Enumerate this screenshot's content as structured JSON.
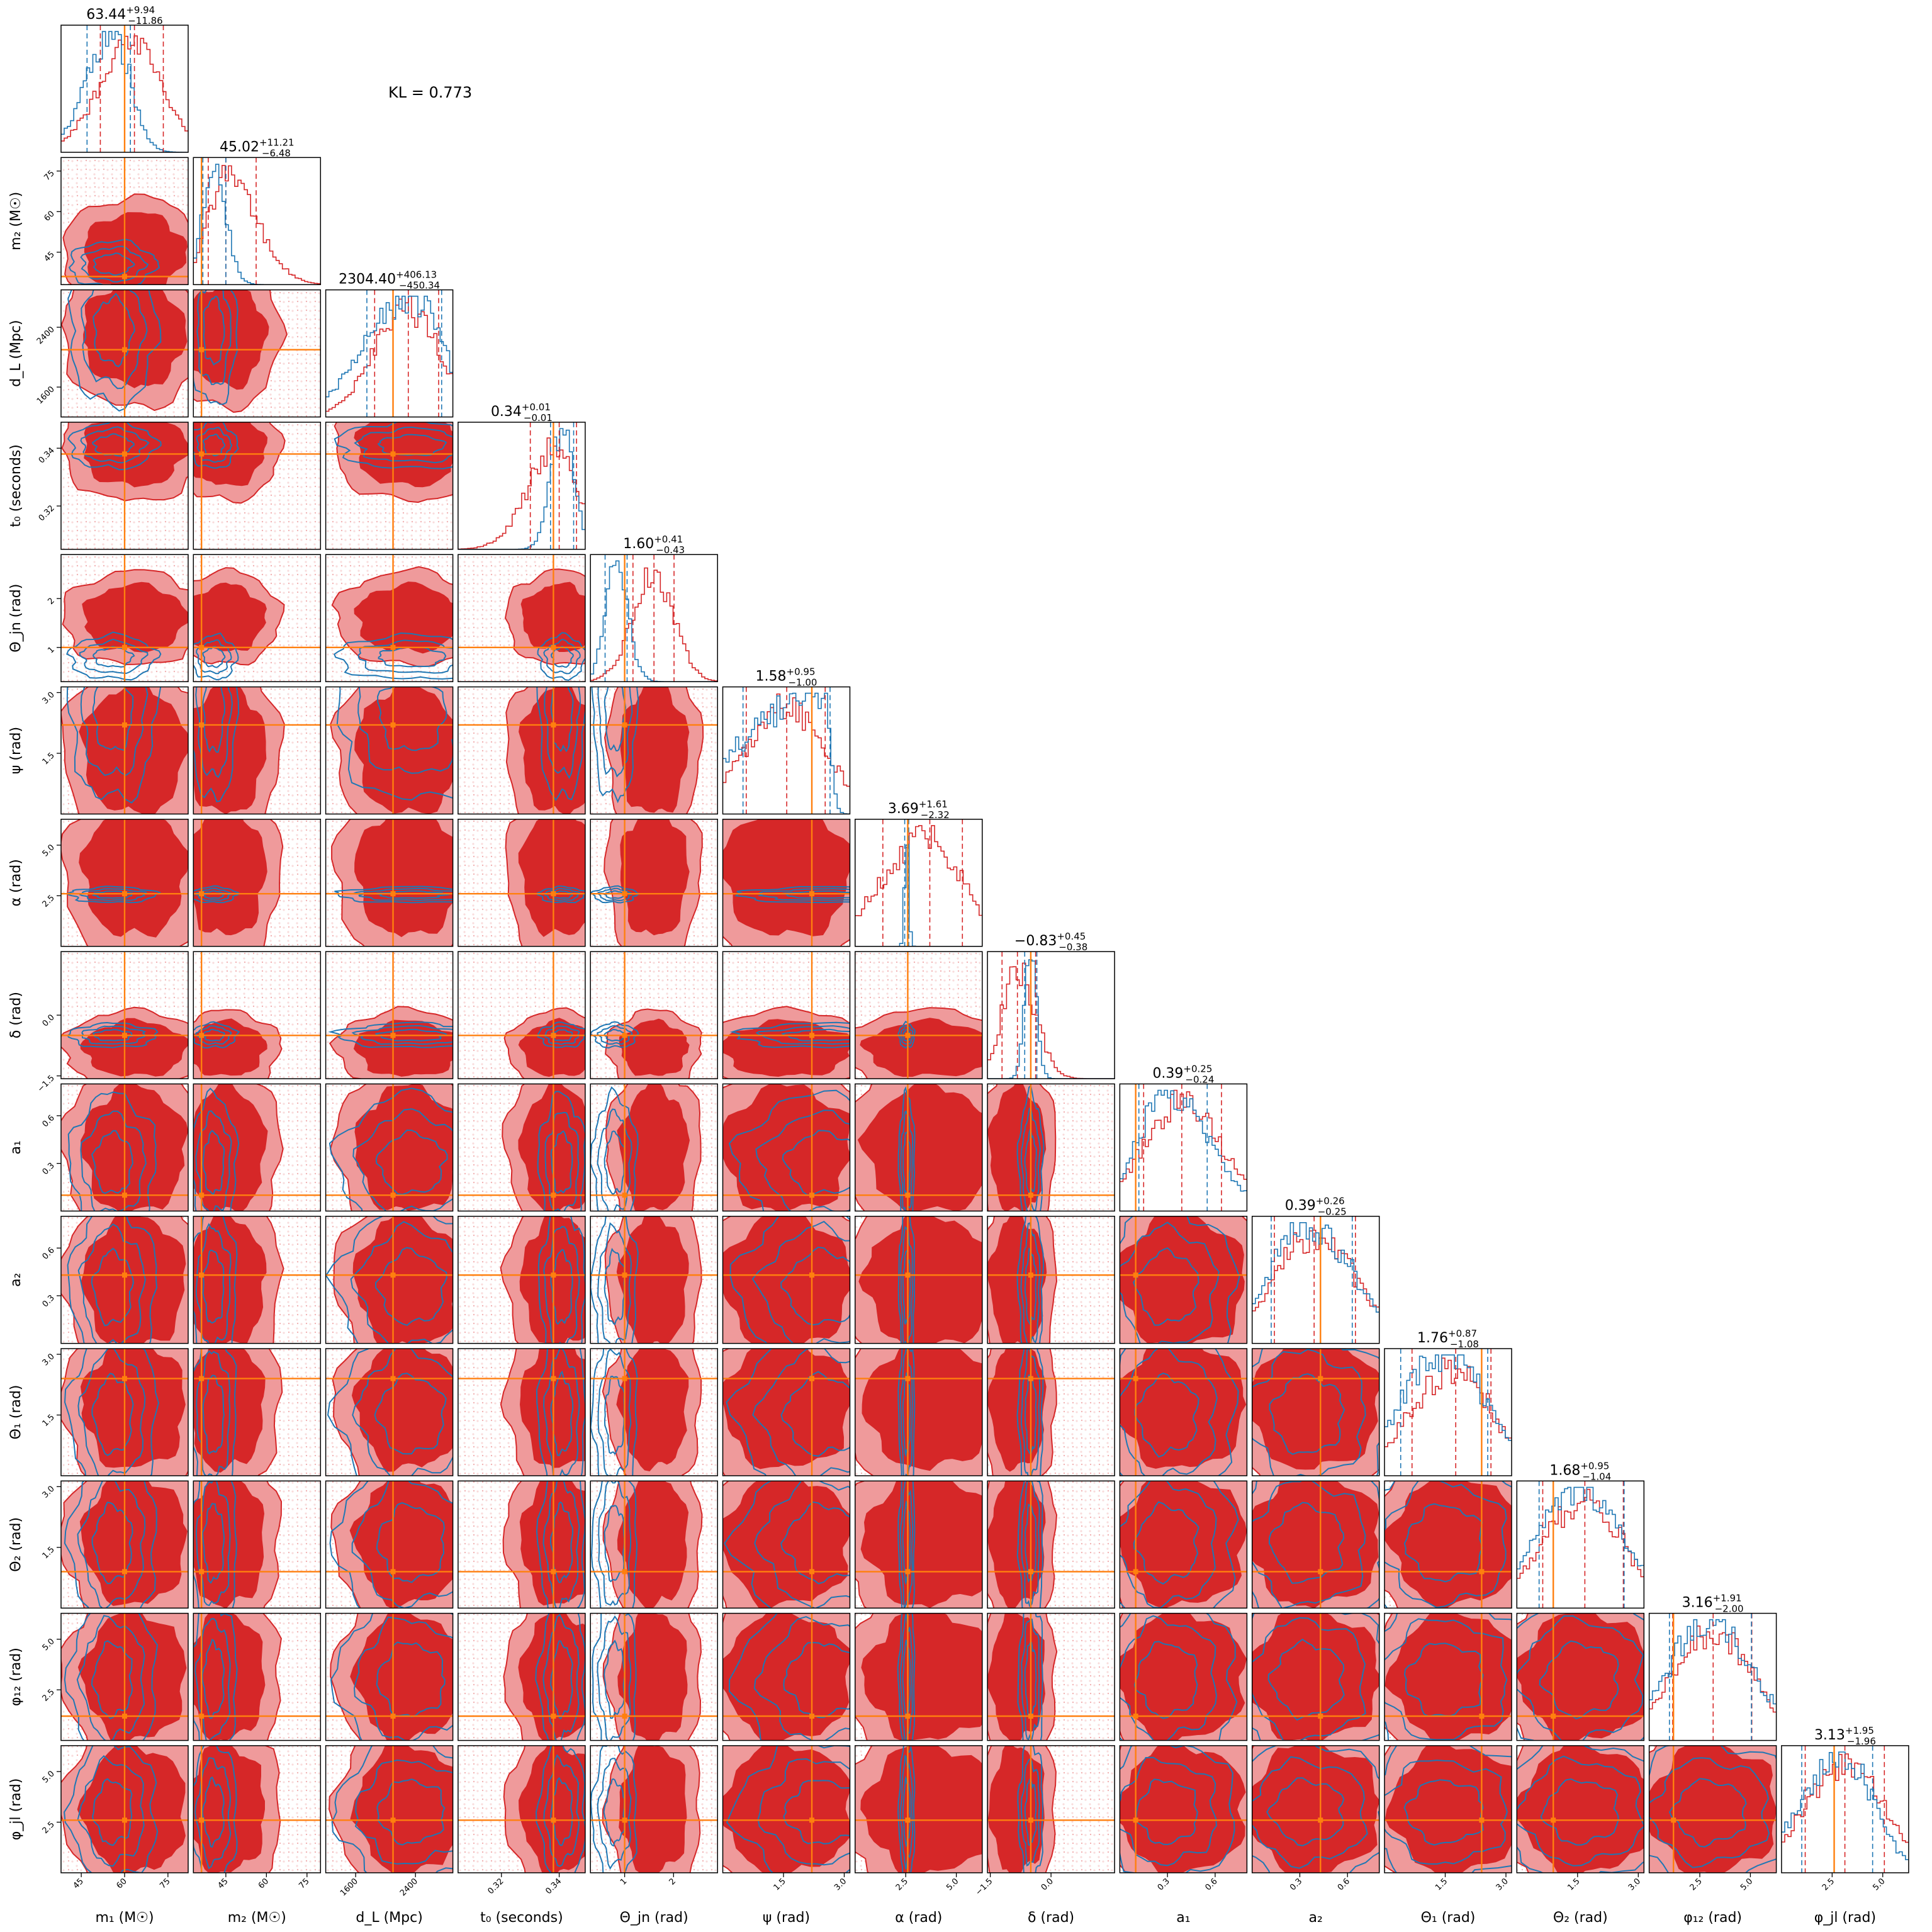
{
  "annotation": "KL = 0.773",
  "colors": {
    "posterior_a": "#d62728",
    "posterior_a_light": "#ef9a9b",
    "posterior_b": "#1f77b4",
    "truth": "#ff7f0e",
    "frame": "#000000"
  },
  "chart_data": {
    "type": "corner",
    "grid": false,
    "legend": "none",
    "parameters": [
      {
        "id": "m1",
        "label": "m₁ (M☉)",
        "title_value": "63.44",
        "title_plus": "+9.94",
        "title_minus": "−11.86",
        "range": [
          38,
          82
        ],
        "ticks": [
          "45",
          "60",
          "75"
        ],
        "tick_values": [
          45,
          60,
          75
        ],
        "truth": 60,
        "quantiles_a": [
          51.6,
          63.4,
          73.4
        ],
        "quantiles_b": [
          47.0,
          56.0,
          62.0
        ]
      },
      {
        "id": "m2",
        "label": "m₂ (M☉)",
        "title_value": "45.02",
        "title_plus": "+11.21",
        "title_minus": "−6.48",
        "range": [
          33,
          80
        ],
        "ticks": [
          "45",
          "60",
          "75"
        ],
        "tick_values": [
          45,
          60,
          75
        ],
        "truth": 36,
        "quantiles_a": [
          38.5,
          45.0,
          56.2
        ],
        "quantiles_b": [
          36.5,
          40.5,
          45.0
        ]
      },
      {
        "id": "dL",
        "label": "d_L (Mpc)",
        "title_value": "2304.40",
        "title_plus": "+406.13",
        "title_minus": "−450.34",
        "range": [
          1200,
          2900
        ],
        "ticks": [
          "1600",
          "2400"
        ],
        "tick_values": [
          1600,
          2400
        ],
        "truth": 2100,
        "quantiles_a": [
          1854,
          2304,
          2710
        ],
        "quantiles_b": [
          1750,
          2350,
          2750
        ]
      },
      {
        "id": "t0",
        "label": "t₀ (seconds)",
        "title_value": "0.34",
        "title_plus": "+0.01",
        "title_minus": "−0.01",
        "range": [
          0.305,
          0.349
        ],
        "ticks": [
          "0.32",
          "0.34"
        ],
        "tick_values": [
          0.32,
          0.34
        ],
        "truth": 0.338,
        "quantiles_a": [
          0.33,
          0.34,
          0.346
        ],
        "quantiles_b": [
          0.337,
          0.341,
          0.345
        ]
      },
      {
        "id": "thetajn",
        "label": "Θ_jn (rad)",
        "title_value": "1.60",
        "title_plus": "+0.41",
        "title_minus": "−0.43",
        "range": [
          0.3,
          2.9
        ],
        "ticks": [
          "1",
          "2"
        ],
        "tick_values": [
          1,
          2
        ],
        "truth": 1.0,
        "quantiles_a": [
          1.17,
          1.6,
          2.01
        ],
        "quantiles_b": [
          0.6,
          0.8,
          1.05
        ]
      },
      {
        "id": "psi",
        "label": "ψ (rad)",
        "title_value": "1.58",
        "title_plus": "+0.95",
        "title_minus": "−1.00",
        "range": [
          0,
          3.14
        ],
        "ticks": [
          "1.5",
          "3.0"
        ],
        "tick_values": [
          1.5,
          3.0
        ],
        "truth": 2.2,
        "quantiles_a": [
          0.58,
          1.58,
          2.53
        ],
        "quantiles_b": [
          0.5,
          2.5,
          2.65
        ]
      },
      {
        "id": "alpha",
        "label": "α (rad)",
        "title_value": "3.69",
        "title_plus": "+1.61",
        "title_minus": "−2.32",
        "range": [
          0,
          6.28
        ],
        "ticks": [
          "2.5",
          "5.0"
        ],
        "tick_values": [
          2.5,
          5.0
        ],
        "truth": 2.6,
        "quantiles_a": [
          1.37,
          3.69,
          5.3
        ],
        "quantiles_b": [
          2.45,
          2.55,
          2.65
        ]
      },
      {
        "id": "delta",
        "label": "δ (rad)",
        "title_value": "−0.83",
        "title_plus": "+0.45",
        "title_minus": "−0.38",
        "range": [
          -1.57,
          1.57
        ],
        "ticks": [
          "−1.5",
          "0.0"
        ],
        "tick_values": [
          -1.5,
          0.0
        ],
        "truth": -0.5,
        "quantiles_a": [
          -1.21,
          -0.83,
          -0.38
        ],
        "quantiles_b": [
          -0.65,
          -0.5,
          -0.35
        ]
      },
      {
        "id": "a1",
        "label": "a₁",
        "title_value": "0.39",
        "title_plus": "+0.25",
        "title_minus": "−0.24",
        "range": [
          0,
          0.8
        ],
        "ticks": [
          "0.3",
          "0.6"
        ],
        "tick_values": [
          0.3,
          0.6
        ],
        "truth": 0.1,
        "quantiles_a": [
          0.15,
          0.39,
          0.64
        ],
        "quantiles_b": [
          0.12,
          0.3,
          0.55
        ]
      },
      {
        "id": "a2",
        "label": "a₂",
        "title_value": "0.39",
        "title_plus": "+0.26",
        "title_minus": "−0.25",
        "range": [
          0,
          0.8
        ],
        "ticks": [
          "0.3",
          "0.6"
        ],
        "tick_values": [
          0.3,
          0.6
        ],
        "truth": 0.43,
        "quantiles_a": [
          0.14,
          0.39,
          0.65
        ],
        "quantiles_b": [
          0.12,
          0.35,
          0.63
        ]
      },
      {
        "id": "theta1",
        "label": "Θ₁ (rad)",
        "title_value": "1.76",
        "title_plus": "+0.87",
        "title_minus": "−1.08",
        "range": [
          0,
          3.14
        ],
        "ticks": [
          "1.5",
          "3.0"
        ],
        "tick_values": [
          1.5,
          3.0
        ],
        "truth": 2.4,
        "quantiles_a": [
          0.68,
          1.76,
          2.63
        ],
        "quantiles_b": [
          0.4,
          1.5,
          2.55
        ]
      },
      {
        "id": "theta2",
        "label": "Θ₂ (rad)",
        "title_value": "1.68",
        "title_plus": "+0.95",
        "title_minus": "−1.04",
        "range": [
          0,
          3.14
        ],
        "ticks": [
          "1.5",
          "3.0"
        ],
        "tick_values": [
          1.5,
          3.0
        ],
        "truth": 0.9,
        "quantiles_a": [
          0.64,
          1.68,
          2.63
        ],
        "quantiles_b": [
          0.55,
          1.6,
          2.65
        ]
      },
      {
        "id": "phi12",
        "label": "φ₁₂ (rad)",
        "title_value": "3.16",
        "title_plus": "+1.91",
        "title_minus": "−2.00",
        "range": [
          0,
          6.28
        ],
        "ticks": [
          "2.5",
          "5.0"
        ],
        "tick_values": [
          2.5,
          5.0
        ],
        "truth": 1.2,
        "quantiles_a": [
          1.16,
          3.16,
          5.07
        ],
        "quantiles_b": [
          1.0,
          3.0,
          5.05
        ]
      },
      {
        "id": "phijl",
        "label": "φ_jl (rad)",
        "title_value": "3.13",
        "title_plus": "+1.95",
        "title_minus": "−1.96",
        "range": [
          0,
          6.28
        ],
        "ticks": [
          "2.5",
          "5.0"
        ],
        "tick_values": [
          2.5,
          5.0
        ],
        "truth": 2.6,
        "quantiles_a": [
          1.17,
          3.13,
          5.08
        ],
        "quantiles_b": [
          1.0,
          3.0,
          4.5
        ]
      }
    ]
  }
}
